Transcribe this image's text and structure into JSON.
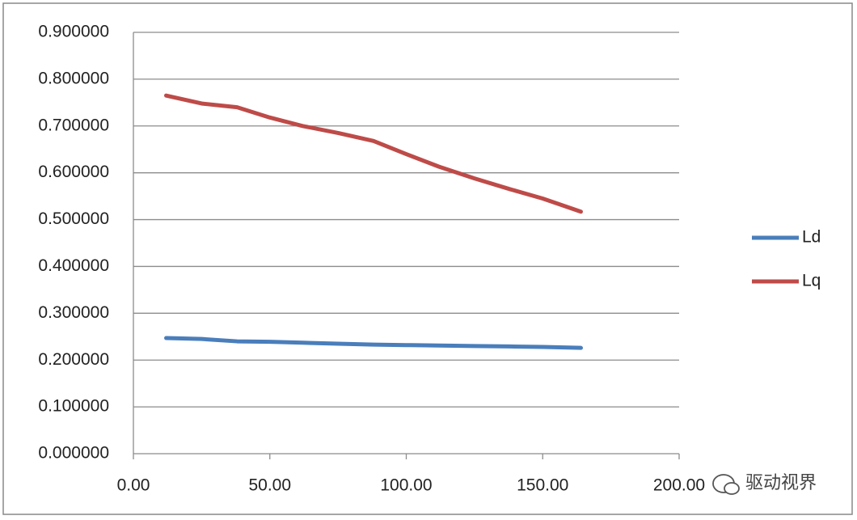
{
  "chart_data": {
    "type": "line",
    "x": [
      12,
      25,
      38,
      50,
      62,
      75,
      88,
      100,
      112,
      125,
      138,
      150,
      164
    ],
    "series": [
      {
        "name": "Ld",
        "color": "#4a7ebb",
        "values": [
          0.247,
          0.245,
          0.24,
          0.239,
          0.237,
          0.235,
          0.233,
          0.232,
          0.231,
          0.23,
          0.229,
          0.228,
          0.226
        ]
      },
      {
        "name": "Lq",
        "color": "#be4b48",
        "values": [
          0.765,
          0.748,
          0.74,
          0.718,
          0.7,
          0.685,
          0.668,
          0.64,
          0.613,
          0.588,
          0.565,
          0.545,
          0.517
        ]
      }
    ],
    "xlim": [
      0,
      200
    ],
    "xticks": [
      {
        "value": 0,
        "label": "0.00"
      },
      {
        "value": 50,
        "label": "50.00"
      },
      {
        "value": 100,
        "label": "100.00"
      },
      {
        "value": 150,
        "label": "150.00"
      },
      {
        "value": 200,
        "label": "200.00"
      }
    ],
    "ylim": [
      0,
      0.9
    ],
    "yticks": [
      {
        "value": 0,
        "label": "0.000000"
      },
      {
        "value": 0.1,
        "label": "0.100000"
      },
      {
        "value": 0.2,
        "label": "0.200000"
      },
      {
        "value": 0.3,
        "label": "0.300000"
      },
      {
        "value": 0.4,
        "label": "0.400000"
      },
      {
        "value": 0.5,
        "label": "0.500000"
      },
      {
        "value": 0.6,
        "label": "0.600000"
      },
      {
        "value": 0.7,
        "label": "0.700000"
      },
      {
        "value": 0.8,
        "label": "0.800000"
      },
      {
        "value": 0.9,
        "label": "0.900000"
      }
    ],
    "grid": true,
    "legend": "right",
    "watermark": "驱动视界"
  }
}
